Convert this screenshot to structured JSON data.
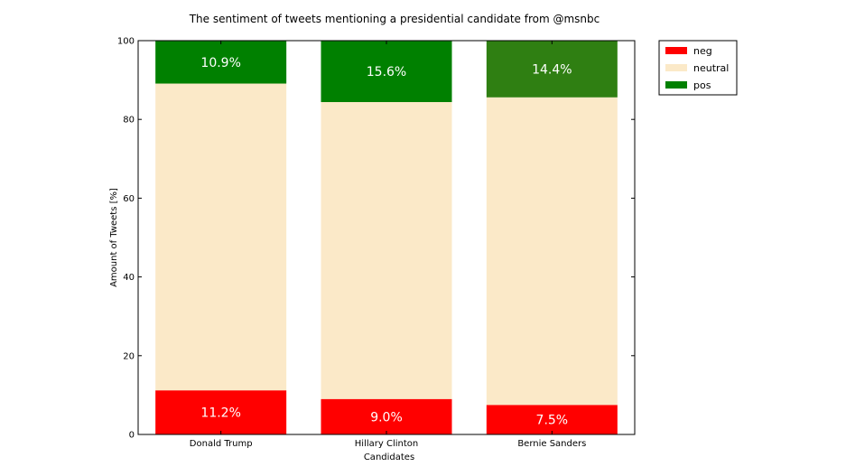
{
  "chart_data": {
    "type": "bar",
    "stacked": true,
    "title": "The sentiment of tweets mentioning a presidential candidate from @msnbc",
    "xlabel": "Candidates",
    "ylabel": "Amount of Tweets [%]",
    "ylim": [
      0,
      100
    ],
    "yticks": [
      "0",
      "20",
      "40",
      "60",
      "80",
      "100"
    ],
    "categories": [
      "Donald Trump",
      "Hillary Clinton",
      "Bernie Sanders"
    ],
    "series": [
      {
        "name": "neg",
        "color": "#ff0000",
        "values": [
          11.2,
          9.0,
          7.5
        ],
        "labels": [
          "11.2%",
          "9.0%",
          "7.5%"
        ]
      },
      {
        "name": "neutral",
        "colors": [
          "#fbe9c8",
          "#fbe9c8",
          "#fbe9c8"
        ],
        "color": "#fbe9c8",
        "values": [
          77.9,
          75.4,
          78.1
        ]
      },
      {
        "name": "pos",
        "color": "#008000",
        "colors": [
          "#008000",
          "#008000",
          "#2f7f12"
        ],
        "values": [
          10.9,
          15.6,
          14.4
        ],
        "labels": [
          "10.9%",
          "15.6%",
          "14.4%"
        ]
      }
    ],
    "legend_position": "top-right, outside plot",
    "grid": false
  }
}
